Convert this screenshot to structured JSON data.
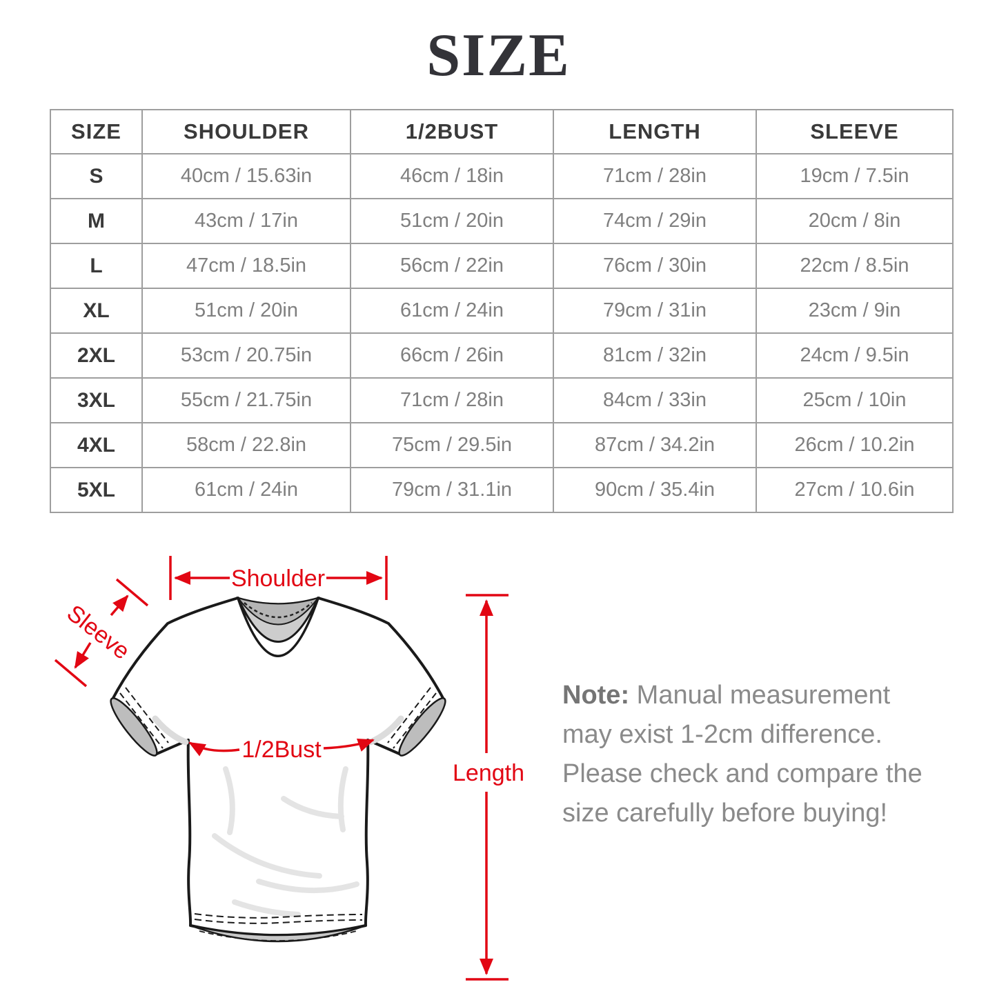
{
  "title": "SIZE",
  "table": {
    "headers": [
      "SIZE",
      "SHOULDER",
      "1/2BUST",
      "LENGTH",
      "SLEEVE"
    ],
    "rows": [
      [
        "S",
        "40cm / 15.63in",
        "46cm / 18in",
        "71cm / 28in",
        "19cm / 7.5in"
      ],
      [
        "M",
        "43cm / 17in",
        "51cm / 20in",
        "74cm / 29in",
        "20cm / 8in"
      ],
      [
        "L",
        "47cm / 18.5in",
        "56cm / 22in",
        "76cm / 30in",
        "22cm / 8.5in"
      ],
      [
        "XL",
        "51cm / 20in",
        "61cm / 24in",
        "79cm / 31in",
        "23cm / 9in"
      ],
      [
        "2XL",
        "53cm / 20.75in",
        "66cm / 26in",
        "81cm / 32in",
        "24cm / 9.5in"
      ],
      [
        "3XL",
        "55cm / 21.75in",
        "71cm / 28in",
        "84cm / 33in",
        "25cm / 10in"
      ],
      [
        "4XL",
        "58cm / 22.8in",
        "75cm / 29.5in",
        "87cm / 34.2in",
        "26cm / 10.2in"
      ],
      [
        "5XL",
        "61cm / 24in",
        "79cm / 31.1in",
        "90cm / 35.4in",
        "27cm / 10.6in"
      ]
    ]
  },
  "diagram": {
    "labels": {
      "shoulder": "Shoulder",
      "sleeve": "Sleeve",
      "half_bust": "1/2Bust",
      "length": "Length"
    },
    "accent_color": "#e20613"
  },
  "note": {
    "label": "Note:",
    "text": " Manual measurement may exist 1-2cm difference. Please check and compare the size carefully before buying!"
  }
}
